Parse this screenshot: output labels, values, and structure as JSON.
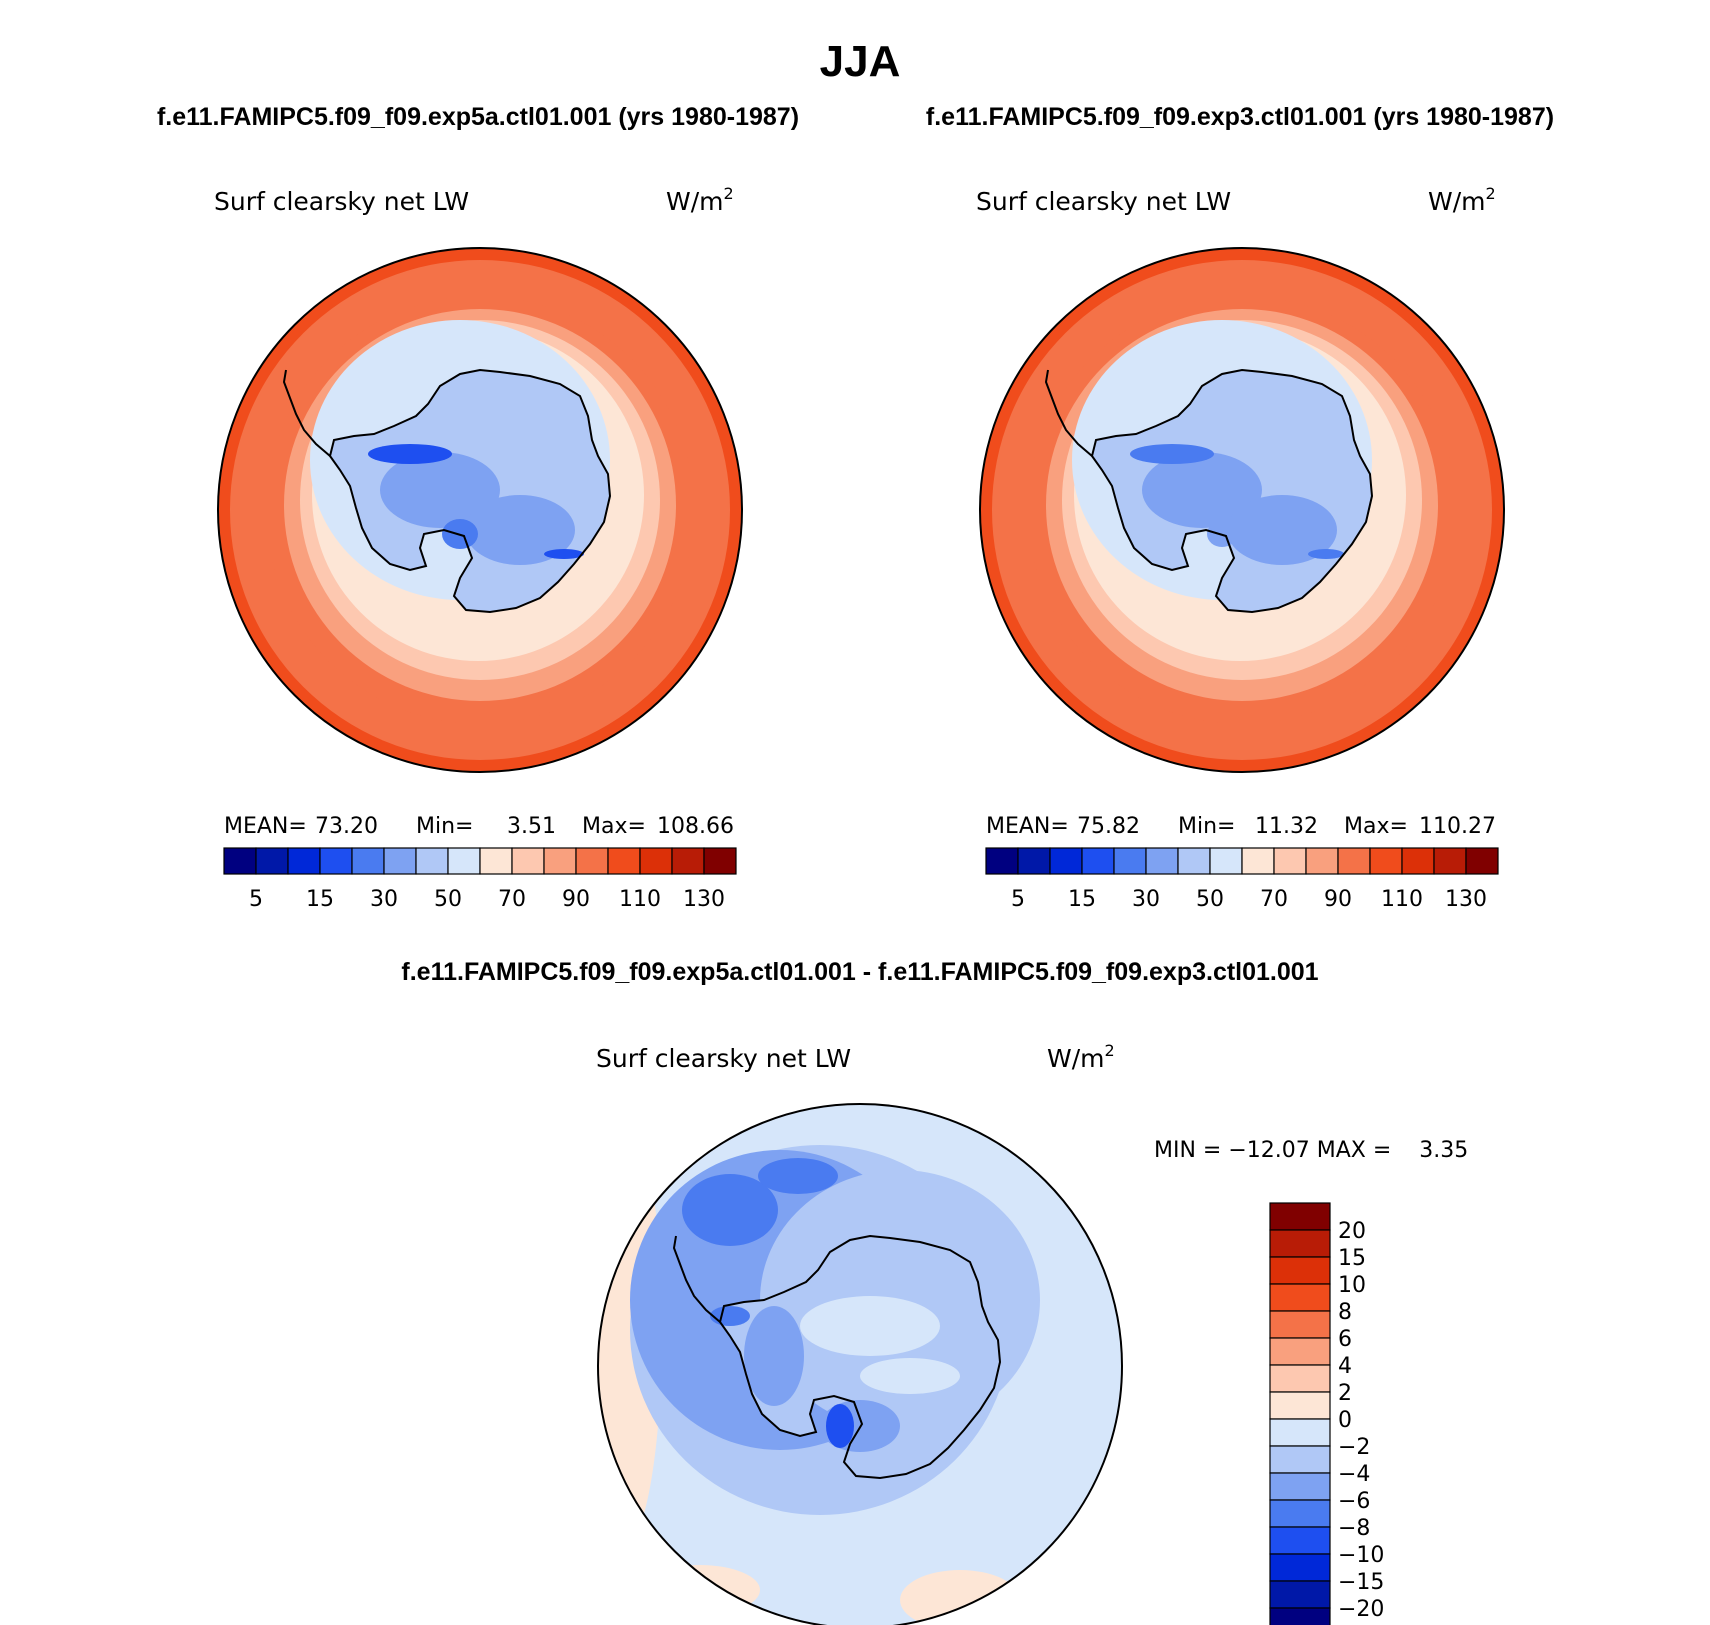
{
  "title": "JJA",
  "colors": {
    "bwr": [
      "#000080",
      "#0018a8",
      "#0028d8",
      "#1e4ff0",
      "#4a7bf0",
      "#7ea2f2",
      "#b0c8f6",
      "#d6e6fa",
      "#fde6d6",
      "#fdc8b0",
      "#f9a07e",
      "#f47248",
      "#f04c1c",
      "#dc3008",
      "#b81c06",
      "#800000"
    ],
    "land_outline": "#000000"
  },
  "panels": [
    {
      "id": "left",
      "case_label": "f.e11.FAMIPC5.f09_f09.exp5a.ctl01.001 (yrs 1980-1987)",
      "variable": "Surf clearsky net LW",
      "units": "W/m",
      "units_sup": "2",
      "stats": {
        "mean_label": "MEAN=",
        "mean": "73.20",
        "min_label": "Min=",
        "min": "3.51",
        "max_label": "Max=",
        "max": "108.66"
      },
      "colorbar_labels": [
        "5",
        "15",
        "30",
        "50",
        "70",
        "90",
        "110",
        "130"
      ],
      "colorbar_levels": [
        0,
        5,
        10,
        15,
        20,
        30,
        40,
        50,
        60,
        70,
        80,
        90,
        100,
        110,
        120,
        130,
        140
      ]
    },
    {
      "id": "right",
      "case_label": "f.e11.FAMIPC5.f09_f09.exp3.ctl01.001 (yrs 1980-1987)",
      "variable": "Surf clearsky net LW",
      "units": "W/m",
      "units_sup": "2",
      "stats": {
        "mean_label": "MEAN=",
        "mean": "75.82",
        "min_label": "Min=",
        "min": "11.32",
        "max_label": "Max=",
        "max": "110.27"
      },
      "colorbar_labels": [
        "5",
        "15",
        "30",
        "50",
        "70",
        "90",
        "110",
        "130"
      ],
      "colorbar_levels": [
        0,
        5,
        10,
        15,
        20,
        30,
        40,
        50,
        60,
        70,
        80,
        90,
        100,
        110,
        120,
        130,
        140
      ]
    }
  ],
  "difference": {
    "case_label": "f.e11.FAMIPC5.f09_f09.exp5a.ctl01.001 - f.e11.FAMIPC5.f09_f09.exp3.ctl01.001",
    "variable": "Surf clearsky net LW",
    "units": "W/m",
    "units_sup": "2",
    "stats_text": "MIN = −12.07 MAX =    3.35",
    "colorbar_labels": [
      "20",
      "15",
      "10",
      "8",
      "6",
      "4",
      "2",
      "0",
      "−2",
      "−4",
      "−6",
      "−8",
      "−10",
      "−15",
      "−20"
    ]
  }
}
